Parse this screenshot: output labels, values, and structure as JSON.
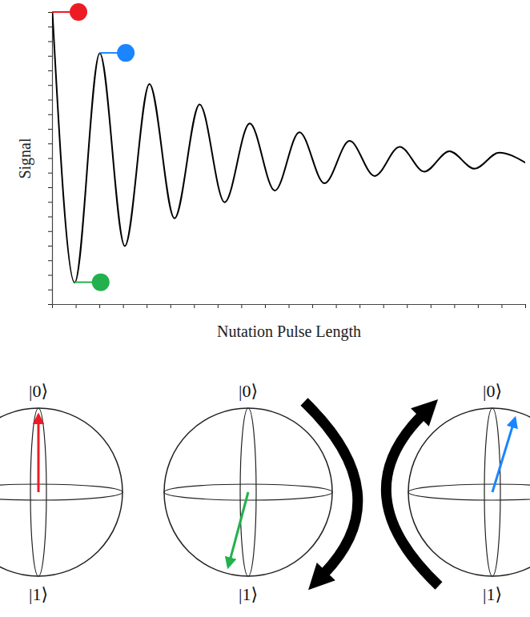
{
  "chart_data": {
    "type": "line",
    "x_label": "Nutation Pulse Length",
    "y_label": "Signal",
    "x": [
      0,
      4.7,
      10.0,
      15.3,
      20.5,
      25.8,
      31.1,
      36.4,
      41.7,
      47.0,
      52.2,
      57.5,
      62.8,
      68.1,
      73.4,
      78.6,
      83.9,
      89.2,
      94.4,
      100
    ],
    "values": [
      1.0,
      -0.85,
      0.72,
      -0.6,
      0.51,
      -0.41,
      0.37,
      -0.3,
      0.24,
      -0.22,
      0.18,
      -0.17,
      0.12,
      -0.12,
      0.08,
      -0.09,
      0.05,
      -0.07,
      0.04,
      -0.03
    ],
    "color": "#000000",
    "xlim": [
      0,
      100
    ],
    "ylim": [
      -1,
      1
    ],
    "xticks": [
      0,
      5,
      10,
      15,
      20,
      25,
      30,
      35,
      40,
      45,
      50,
      55,
      60,
      65,
      70,
      75,
      80,
      85,
      90,
      95,
      100
    ],
    "yticks": [
      -1,
      -0.9,
      -0.8,
      -0.7,
      -0.6,
      -0.5,
      -0.4,
      -0.3,
      -0.2,
      -0.1,
      0,
      0.1,
      0.2,
      0.3,
      0.4,
      0.5,
      0.6,
      0.7,
      0.8,
      0.9,
      1
    ],
    "tick_labels": false,
    "markers": [
      {
        "x": 0,
        "y": 1.0,
        "color": "#ed1c24"
      },
      {
        "x": 4.7,
        "y": -0.85,
        "color": "#22b14c"
      },
      {
        "x": 10.0,
        "y": 0.72,
        "color": "#1a85ff"
      }
    ]
  },
  "bloch_spheres": [
    {
      "top_label": "|0⟩",
      "bottom_label": "|1⟩",
      "arrow_color": "#ed1c24",
      "theta": 0,
      "phi": 0
    },
    {
      "top_label": "|0⟩",
      "bottom_label": "|1⟩",
      "arrow_color": "#22b14c",
      "theta": 165,
      "phi": 180
    },
    {
      "top_label": "|0⟩",
      "bottom_label": "|1⟩",
      "arrow_color": "#1a85ff",
      "theta": 17,
      "phi": 0
    }
  ]
}
